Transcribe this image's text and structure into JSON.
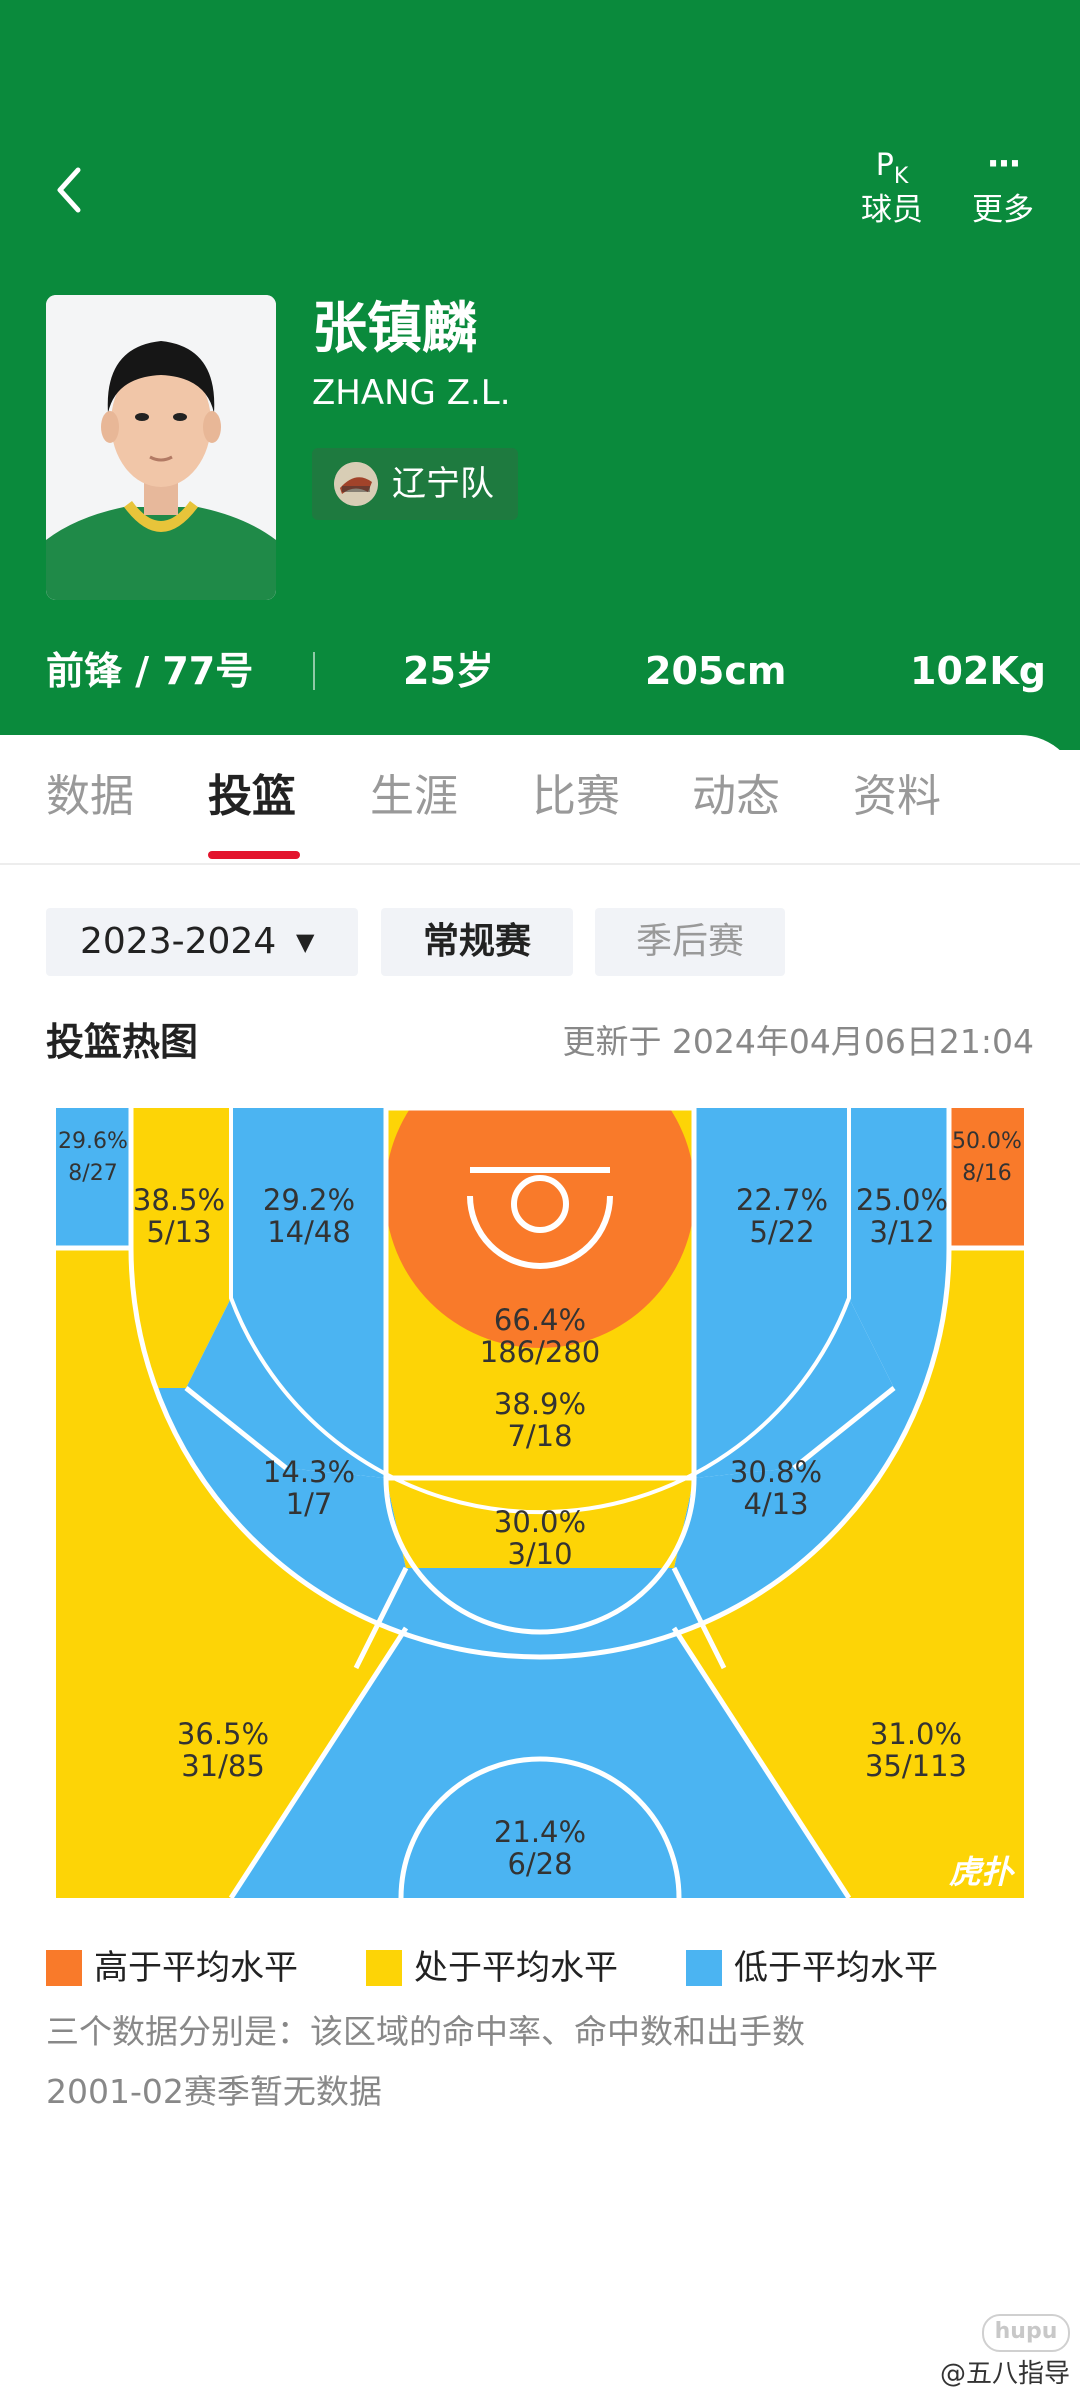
{
  "header": {
    "pk_label": "球员",
    "pk_icon_text": "P",
    "pk_icon_sub": "K",
    "more_label": "更多",
    "more_icon_text": "···",
    "bg_color": "#0a8a3c"
  },
  "player": {
    "name": "张镇麟",
    "english_name": "ZHANG Z.L.",
    "team": "辽宁队",
    "position_number": "前锋 / 77号",
    "age": "25岁",
    "height": "205cm",
    "weight": "102Kg"
  },
  "tabs": [
    {
      "label": "数据"
    },
    {
      "label": "投篮"
    },
    {
      "label": "生涯"
    },
    {
      "label": "比赛"
    },
    {
      "label": "动态"
    },
    {
      "label": "资料"
    }
  ],
  "active_tab": "投篮",
  "filters": {
    "season": "2023-2024",
    "regular": "常规赛",
    "playoff": "季后赛"
  },
  "heatmap": {
    "title": "投篮热图",
    "updated": "更新于 2024年04月06日21:04",
    "corner_logo_text": "虎扑"
  },
  "chart_data": {
    "type": "heatmap",
    "title": "投篮热图",
    "legend": [
      {
        "label": "高于平均水平",
        "color": "#f97a2a"
      },
      {
        "label": "处于平均水平",
        "color": "#fdd406"
      },
      {
        "label": "低于平均水平",
        "color": "#4bb4f2"
      }
    ],
    "zones": [
      {
        "zone": "left-corner-3",
        "pct": "29.6%",
        "made_att": "8/27",
        "level": "below"
      },
      {
        "zone": "right-corner-3",
        "pct": "50.0%",
        "made_att": "8/16",
        "level": "above"
      },
      {
        "zone": "left-baseline-long-2",
        "pct": "38.5%",
        "made_att": "5/13",
        "level": "average"
      },
      {
        "zone": "left-short-2",
        "pct": "29.2%",
        "made_att": "14/48",
        "level": "below"
      },
      {
        "zone": "restricted-area",
        "pct": "66.4%",
        "made_att": "186/280",
        "level": "above"
      },
      {
        "zone": "right-short-2",
        "pct": "22.7%",
        "made_att": "5/22",
        "level": "below"
      },
      {
        "zone": "right-baseline-long-2",
        "pct": "25.0%",
        "made_att": "3/12",
        "level": "below"
      },
      {
        "zone": "paint",
        "pct": "38.9%",
        "made_att": "7/18",
        "level": "average"
      },
      {
        "zone": "left-wing-long-2",
        "pct": "14.3%",
        "made_att": "1/7",
        "level": "below"
      },
      {
        "zone": "top-key-long-2",
        "pct": "30.0%",
        "made_att": "3/10",
        "level": "below"
      },
      {
        "zone": "right-wing-long-2",
        "pct": "30.8%",
        "made_att": "4/13",
        "level": "below"
      },
      {
        "zone": "left-wing-3",
        "pct": "36.5%",
        "made_att": "31/85",
        "level": "average"
      },
      {
        "zone": "top-key-3",
        "pct": "21.4%",
        "made_att": "6/28",
        "level": "below"
      },
      {
        "zone": "right-wing-3",
        "pct": "31.0%",
        "made_att": "35/113",
        "level": "average"
      }
    ]
  },
  "notes": {
    "explain": "三个数据分别是：该区域的命中率、命中数和出手数",
    "no_data": "2001-02赛季暂无数据"
  },
  "watermark": {
    "logo": "hupu",
    "text": "@五八指导"
  }
}
